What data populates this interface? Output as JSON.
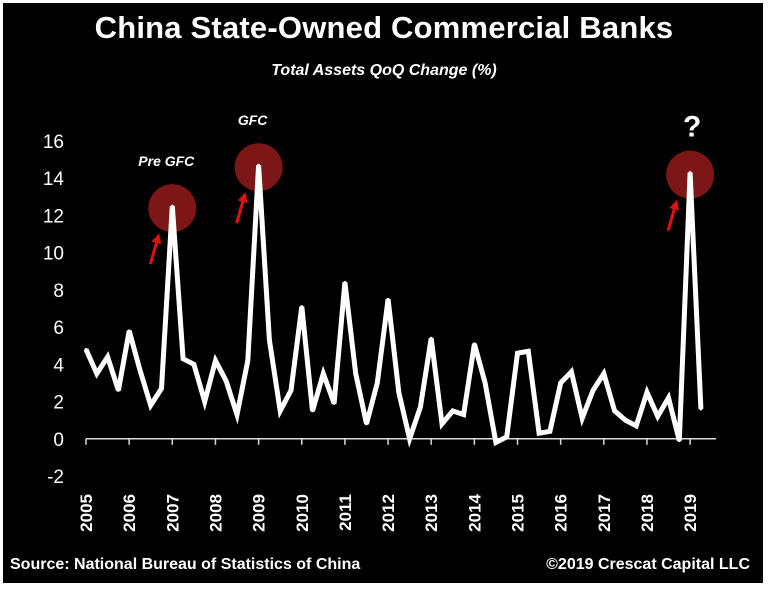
{
  "title": "China State-Owned Commercial Banks",
  "subtitle": "Total Assets QoQ Change (%)",
  "source": "Source: National Bureau of Statistics of China",
  "credit": "©2019 Crescat Capital LLC",
  "colors": {
    "background": "#000000",
    "line": "#ffffff",
    "highlight": "#8b1a1a",
    "arrow": "#e01010",
    "text": "#ffffff"
  },
  "chart_data": {
    "type": "line",
    "title": "China State-Owned Commercial Banks",
    "subtitle": "Total Assets QoQ Change (%)",
    "xlabel": "",
    "ylabel": "",
    "ylim": [
      -2,
      16
    ],
    "yticks": [
      -2,
      0,
      2,
      4,
      6,
      8,
      10,
      12,
      14,
      16
    ],
    "xlim": [
      2005,
      2019.6
    ],
    "xticks": [
      "2005",
      "2006",
      "2007",
      "2008",
      "2009",
      "2010",
      "2011",
      "2012",
      "2013",
      "2014",
      "2015",
      "2016",
      "2017",
      "2018",
      "2019"
    ],
    "grid": false,
    "series": [
      {
        "name": "Total Assets QoQ Change (%)",
        "x": [
          2005.0,
          2005.25,
          2005.5,
          2005.75,
          2006.0,
          2006.25,
          2006.5,
          2006.75,
          2007.0,
          2007.25,
          2007.5,
          2007.75,
          2008.0,
          2008.25,
          2008.5,
          2008.75,
          2009.0,
          2009.25,
          2009.5,
          2009.75,
          2010.0,
          2010.25,
          2010.5,
          2010.75,
          2011.0,
          2011.25,
          2011.5,
          2011.75,
          2012.0,
          2012.25,
          2012.5,
          2012.75,
          2013.0,
          2013.25,
          2013.5,
          2013.75,
          2014.0,
          2014.25,
          2014.5,
          2014.75,
          2015.0,
          2015.25,
          2015.5,
          2015.75,
          2016.0,
          2016.25,
          2016.5,
          2016.75,
          2017.0,
          2017.25,
          2017.5,
          2017.75,
          2018.0,
          2018.25,
          2018.5,
          2018.75,
          2019.0,
          2019.25
        ],
        "values": [
          4.8,
          3.5,
          4.4,
          2.6,
          5.8,
          3.7,
          1.8,
          2.7,
          12.5,
          4.3,
          4.0,
          2.0,
          4.2,
          3.1,
          1.3,
          4.2,
          14.7,
          5.3,
          1.5,
          2.6,
          7.1,
          1.5,
          3.5,
          1.9,
          8.4,
          3.5,
          0.8,
          3.0,
          7.5,
          2.5,
          0.0,
          1.7,
          5.4,
          0.8,
          1.5,
          1.3,
          5.1,
          3.0,
          -0.2,
          0.1,
          4.6,
          4.7,
          0.3,
          0.4,
          3.0,
          3.6,
          1.1,
          2.6,
          3.5,
          1.5,
          1.0,
          0.7,
          2.5,
          1.2,
          2.2,
          -0.1,
          14.3,
          1.6
        ]
      }
    ],
    "annotations": [
      {
        "label": "Pre GFC",
        "x": 2007.0,
        "y": 12.5
      },
      {
        "label": "GFC",
        "x": 2009.0,
        "y": 14.7
      },
      {
        "label": "?",
        "x": 2019.0,
        "y": 14.3
      }
    ]
  }
}
